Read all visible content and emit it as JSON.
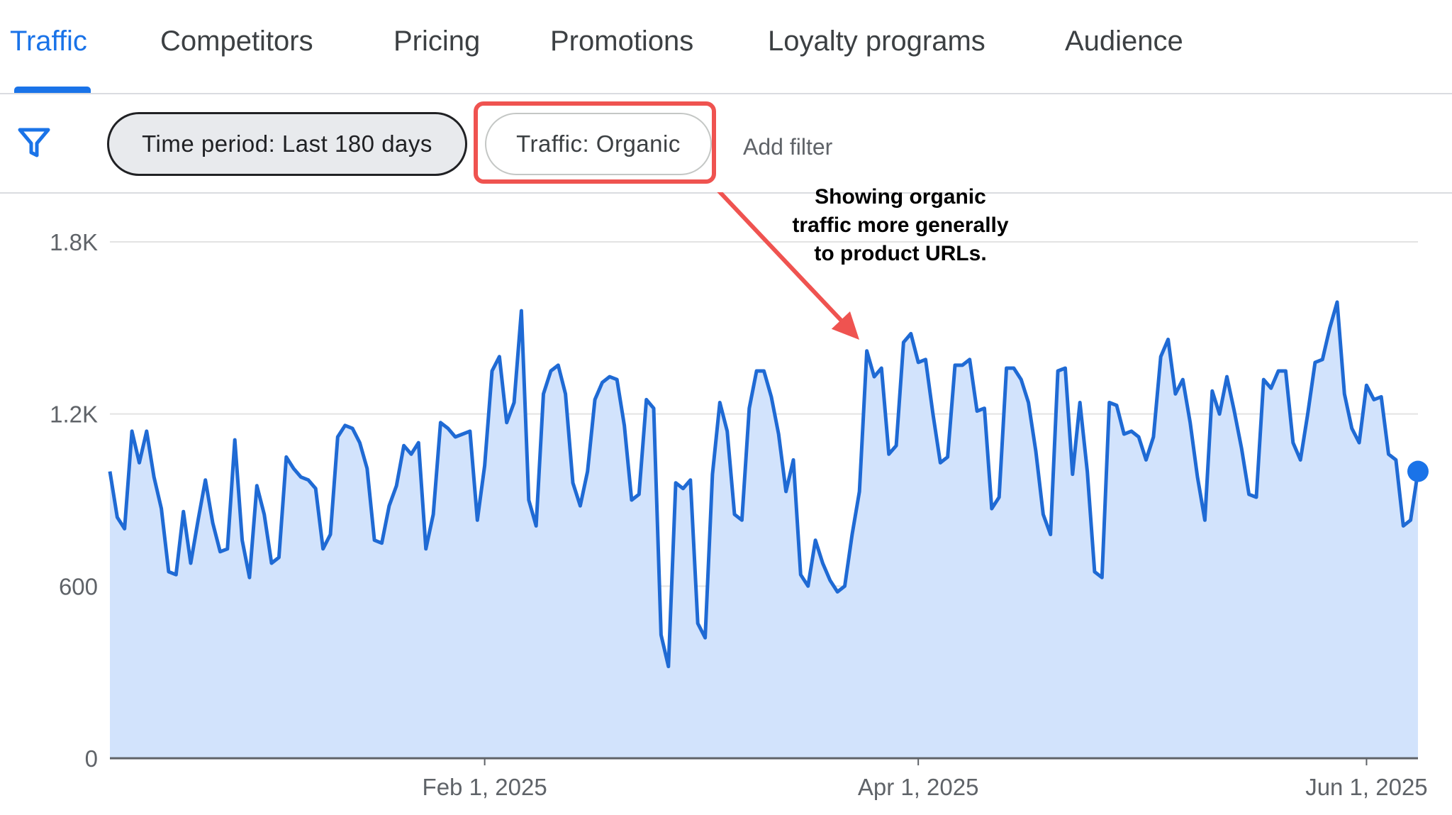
{
  "tabs": [
    {
      "label": "Traffic",
      "active": true
    },
    {
      "label": "Competitors",
      "active": false
    },
    {
      "label": "Pricing",
      "active": false
    },
    {
      "label": "Promotions",
      "active": false
    },
    {
      "label": "Loyalty programs",
      "active": false
    },
    {
      "label": "Audience",
      "active": false
    }
  ],
  "filters": {
    "icon": "filter-icon",
    "time_period": "Time period: Last 180 days",
    "traffic": "Traffic: Organic",
    "add_filter": "Add filter"
  },
  "annotation": {
    "lines": [
      "Showing organic",
      "traffic more generally",
      "to product URLs."
    ]
  },
  "colors": {
    "accent": "#1a73e8",
    "line": "#1f6ad4",
    "area": "#d2e3fc",
    "highlight": "#ef5350"
  },
  "chart_data": {
    "type": "area",
    "y_ticks": [
      {
        "value": 0,
        "label": "0"
      },
      {
        "value": 600,
        "label": "600"
      },
      {
        "value": 1200,
        "label": "1.2K"
      },
      {
        "value": 1800,
        "label": "1.8K"
      }
    ],
    "x_ticks": [
      {
        "index": 51,
        "label": "Feb 1, 2025"
      },
      {
        "index": 110,
        "label": "Apr 1, 2025"
      },
      {
        "index": 171,
        "label": "Jun 1, 2025"
      }
    ],
    "ylim": [
      0,
      1800
    ],
    "grid": true,
    "values": [
      1000,
      840,
      800,
      1140,
      1030,
      1140,
      980,
      870,
      650,
      640,
      860,
      680,
      830,
      970,
      820,
      720,
      730,
      1110,
      760,
      630,
      950,
      850,
      680,
      700,
      1050,
      1010,
      980,
      970,
      940,
      730,
      780,
      1120,
      1160,
      1150,
      1100,
      1010,
      760,
      750,
      880,
      950,
      1090,
      1060,
      1100,
      730,
      850,
      1170,
      1150,
      1120,
      1130,
      1140,
      830,
      1020,
      1350,
      1400,
      1170,
      1240,
      1560,
      900,
      810,
      1270,
      1350,
      1370,
      1270,
      960,
      880,
      1000,
      1250,
      1310,
      1330,
      1320,
      1160,
      900,
      920,
      1250,
      1220,
      430,
      320,
      960,
      940,
      970,
      470,
      420,
      990,
      1240,
      1140,
      850,
      830,
      1220,
      1350,
      1350,
      1260,
      1130,
      930,
      1040,
      640,
      600,
      760,
      680,
      620,
      580,
      600,
      780,
      930,
      1420,
      1330,
      1360,
      1060,
      1090,
      1450,
      1480,
      1380,
      1390,
      1200,
      1030,
      1050,
      1370,
      1370,
      1390,
      1210,
      1220,
      870,
      910,
      1360,
      1360,
      1320,
      1240,
      1070,
      850,
      780,
      1350,
      1360,
      990,
      1240,
      1000,
      650,
      630,
      1240,
      1230,
      1130,
      1140,
      1120,
      1040,
      1120,
      1400,
      1460,
      1270,
      1320,
      1170,
      980,
      830,
      1280,
      1200,
      1330,
      1210,
      1080,
      920,
      910,
      1320,
      1290,
      1350,
      1350,
      1100,
      1040,
      1200,
      1380,
      1390,
      1500,
      1590,
      1270,
      1150,
      1100,
      1300,
      1250,
      1260,
      1060,
      1040,
      810,
      830,
      1000
    ]
  }
}
